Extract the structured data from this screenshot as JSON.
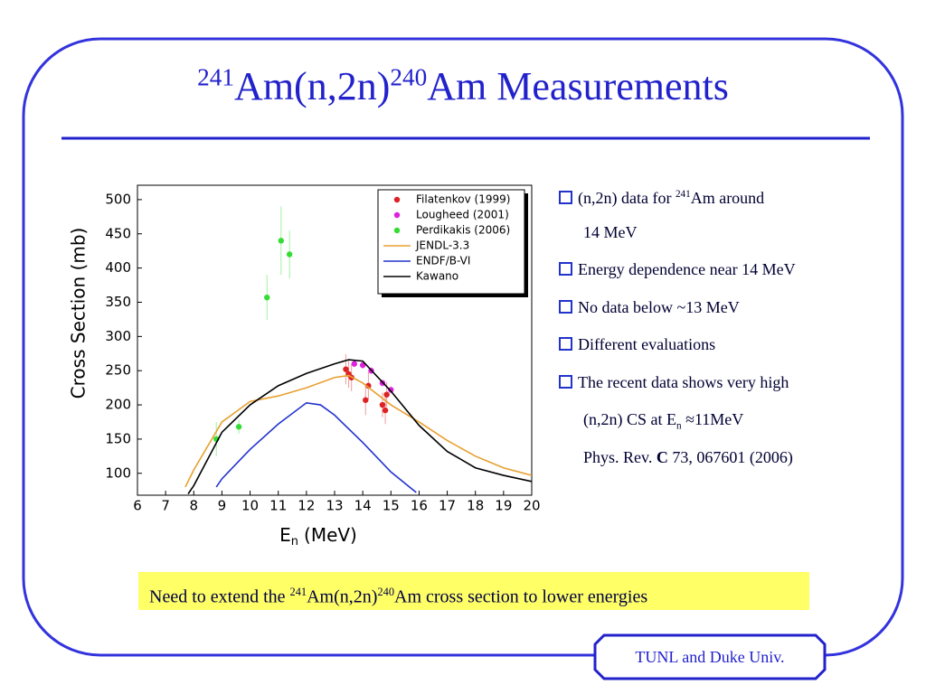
{
  "title": [
    {
      "text": "241",
      "style": "sup"
    },
    {
      "text": "Am(n,2n)"
    },
    {
      "text": "240",
      "style": "sup"
    },
    {
      "text": "Am Measurements"
    }
  ],
  "chart_data": {
    "type": "line",
    "y_label": "Cross Section (mb)",
    "x_label": {
      "main": "E",
      "sub": "n",
      "unit": "(MeV)"
    },
    "xlim": [
      6,
      20
    ],
    "xticks": [
      6,
      7,
      8,
      9,
      10,
      11,
      12,
      13,
      14,
      15,
      16,
      17,
      18,
      19,
      20
    ],
    "ylim": [
      68,
      521
    ],
    "yticks": [
      100,
      150,
      200,
      250,
      300,
      350,
      400,
      450,
      500
    ],
    "legend": "top-right",
    "series": [
      {
        "name": "Filatenkov (1999)",
        "mode": "markers",
        "color": "#dd2222",
        "x": [
          13.4,
          13.5,
          13.6,
          14.1,
          14.2,
          14.7,
          14.8,
          14.85
        ],
        "values": [
          252,
          245,
          240,
          207,
          228,
          200,
          192,
          215
        ],
        "errors": [
          22,
          20,
          20,
          22,
          20,
          18,
          20,
          18
        ]
      },
      {
        "name": "Lougheed (2001)",
        "mode": "markers",
        "color": "#dd22dd",
        "x": [
          13.7,
          14.0,
          14.3,
          14.7,
          15.0
        ],
        "values": [
          260,
          258,
          250,
          232,
          222
        ],
        "errors": [
          5,
          5,
          5,
          5,
          5
        ]
      },
      {
        "name": "Perdikakis (2006)",
        "mode": "markers",
        "color": "#33dd33",
        "x": [
          8.8,
          9.6,
          10.6,
          11.1,
          11.4
        ],
        "values": [
          150,
          168,
          357,
          440,
          420
        ],
        "errors": [
          25,
          10,
          33,
          50,
          35
        ]
      },
      {
        "name": "JENDL-3.3",
        "mode": "line",
        "color": "#e8a030",
        "x": [
          7.7,
          8,
          9,
          10,
          11,
          12,
          13,
          13.5,
          14,
          15,
          16,
          17,
          18,
          19,
          20
        ],
        "values": [
          80,
          105,
          175,
          205,
          213,
          225,
          240,
          243,
          232,
          200,
          175,
          148,
          125,
          108,
          97
        ]
      },
      {
        "name": "ENDF/B-VI",
        "mode": "line",
        "color": "#2233cc",
        "x": [
          8.8,
          9,
          10,
          11,
          12,
          12.5,
          13,
          14,
          15,
          15.9
        ],
        "values": [
          80,
          92,
          135,
          172,
          203,
          200,
          185,
          145,
          102,
          72
        ]
      },
      {
        "name": "Kawano",
        "mode": "line",
        "color": "#000000",
        "x": [
          7.8,
          8,
          9,
          10,
          11,
          12,
          13,
          13.5,
          14,
          15,
          16,
          17,
          18,
          19,
          20
        ],
        "values": [
          70,
          82,
          160,
          200,
          228,
          246,
          260,
          266,
          264,
          220,
          170,
          132,
          108,
          97,
          88
        ]
      }
    ]
  },
  "bullets": [
    [
      [
        {
          "text": "(n,2n) data for "
        },
        {
          "text": "241",
          "style": "sup"
        },
        {
          "text": "Am around"
        }
      ],
      [
        {
          "text": "14 MeV"
        }
      ]
    ],
    [
      [
        {
          "text": "Energy dependence near 14 MeV"
        }
      ]
    ],
    [
      [
        {
          "text": "No data below ~13 MeV"
        }
      ]
    ],
    [
      [
        {
          "text": "Different evaluations"
        }
      ]
    ],
    [
      [
        {
          "text": "The recent data shows very high"
        }
      ],
      [
        {
          "text": "(n,2n) CS at E"
        },
        {
          "text": "n",
          "style": "sub"
        },
        {
          "text": " ≈11MeV"
        }
      ],
      [
        {
          "text": "Phys. Rev. "
        },
        {
          "text": "C",
          "style": "bold"
        },
        {
          "text": " 73, 067601 (2006)"
        }
      ]
    ]
  ],
  "note": [
    {
      "text": "Need to extend the "
    },
    {
      "text": "241",
      "style": "sup"
    },
    {
      "text": "Am(n,2n)"
    },
    {
      "text": "240",
      "style": "sup"
    },
    {
      "text": "Am cross section to lower energies"
    }
  ],
  "footer": "TUNL and Duke Univ."
}
